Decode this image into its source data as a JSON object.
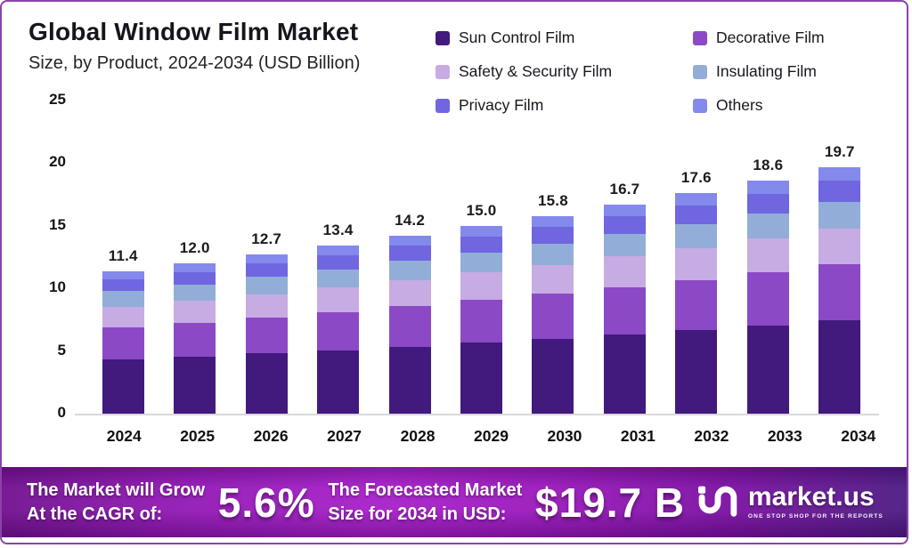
{
  "header": {
    "title": "Global Window Film Market",
    "subtitle": "Size, by Product, 2024-2034 (USD Billion)"
  },
  "legend": {
    "items": [
      {
        "label": "Sun Control Film",
        "color": "#42197d"
      },
      {
        "label": "Decorative Film",
        "color": "#8b49c6"
      },
      {
        "label": "Safety & Security Film",
        "color": "#c7abe3"
      },
      {
        "label": "Insulating Film",
        "color": "#92aed8"
      },
      {
        "label": "Privacy Film",
        "color": "#6f66e0"
      },
      {
        "label": "Others",
        "color": "#8489ec"
      }
    ]
  },
  "chart_data": {
    "type": "bar",
    "stacked": true,
    "title": "Global Window Film Market Size, by Product, 2024-2034 (USD Billion)",
    "unit": "USD Billion",
    "categories": [
      "2024",
      "2025",
      "2026",
      "2027",
      "2028",
      "2029",
      "2030",
      "2031",
      "2032",
      "2033",
      "2034"
    ],
    "totals": [
      "11.4",
      "12.0",
      "12.7",
      "13.4",
      "14.2",
      "15.0",
      "15.8",
      "16.7",
      "17.6",
      "18.6",
      "19.7"
    ],
    "ylim": [
      0,
      25
    ],
    "yticks": [
      0,
      5,
      10,
      15,
      20,
      25
    ],
    "grid": false,
    "legend_position": "top-right",
    "series": [
      {
        "name": "Sun Control Film",
        "color": "#42197d",
        "values": [
          4.31,
          4.53,
          4.8,
          5.06,
          5.36,
          5.66,
          5.98,
          6.31,
          6.65,
          7.03,
          7.45
        ]
      },
      {
        "name": "Decorative Film",
        "color": "#8b49c6",
        "values": [
          2.6,
          2.74,
          2.9,
          3.06,
          3.24,
          3.42,
          3.6,
          3.81,
          4.01,
          4.24,
          4.49
        ]
      },
      {
        "name": "Safety & Security Film",
        "color": "#c7abe3",
        "values": [
          1.65,
          1.74,
          1.84,
          1.94,
          2.06,
          2.18,
          2.29,
          2.42,
          2.55,
          2.7,
          2.86
        ]
      },
      {
        "name": "Insulating Film",
        "color": "#92aed8",
        "values": [
          1.23,
          1.3,
          1.37,
          1.45,
          1.53,
          1.62,
          1.71,
          1.8,
          1.9,
          2.01,
          2.13
        ]
      },
      {
        "name": "Privacy Film",
        "color": "#6f66e0",
        "values": [
          0.97,
          1.02,
          1.08,
          1.14,
          1.21,
          1.28,
          1.34,
          1.42,
          1.5,
          1.58,
          1.67
        ]
      },
      {
        "name": "Others",
        "color": "#8489ec",
        "values": [
          0.64,
          0.67,
          0.71,
          0.75,
          0.8,
          0.84,
          0.88,
          0.94,
          0.99,
          1.04,
          1.1
        ]
      }
    ]
  },
  "banner": {
    "cagr_label_line1": "The Market will Grow",
    "cagr_label_line2": "At the CAGR of:",
    "cagr_value": "5.6%",
    "forecast_label_line1": "The Forecasted Market",
    "forecast_label_line2": "Size for 2034 in USD:",
    "forecast_value": "$19.7 B",
    "brand_name": "market.us",
    "brand_tagline": "ONE STOP SHOP FOR THE REPORTS"
  }
}
